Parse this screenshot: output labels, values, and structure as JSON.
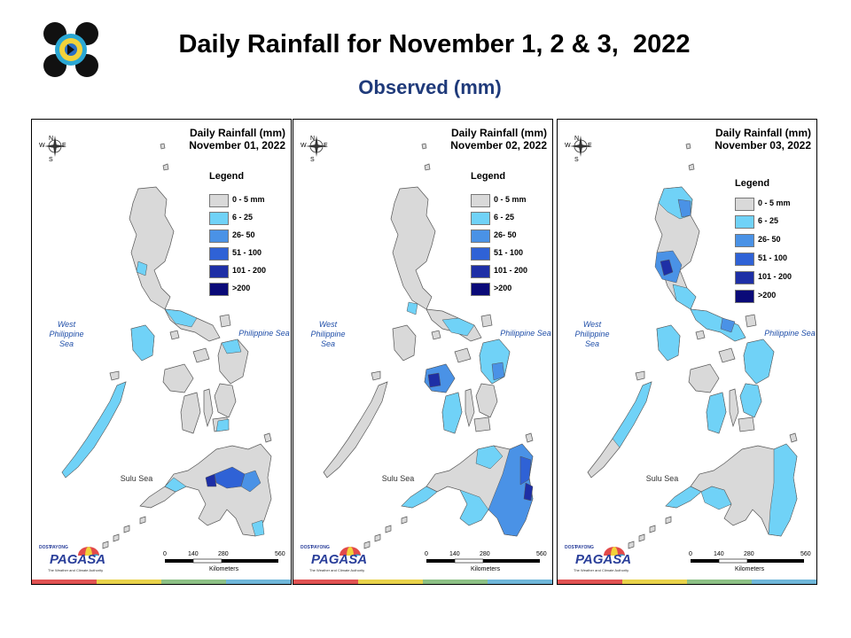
{
  "header": {
    "title": "Daily Rainfall for November 1, 2 & 3,  2022",
    "subtitle": "Observed (mm)"
  },
  "legend": {
    "title": "Legend",
    "items": [
      {
        "label": "0 - 5 mm",
        "color": "#d9d9d9"
      },
      {
        "label": "6 - 25",
        "color": "#70d2f7"
      },
      {
        "label": "26- 50",
        "color": "#4a92e6"
      },
      {
        "label": "51 - 100",
        "color": "#2f62d6"
      },
      {
        "label": "101 - 200",
        "color": "#1e2fa6"
      },
      {
        "label": ">200",
        "color": "#0a0a78"
      }
    ],
    "items_panel3": [
      "0 - 5 mm",
      "6 - 25",
      "26- 50",
      "51 - 100",
      "101 - 200",
      ">200"
    ]
  },
  "panels": [
    {
      "title_line1": "Daily Rainfall (mm)",
      "title_line2": "November 01, 2022"
    },
    {
      "title_line1": "Daily Rainfall (mm)",
      "title_line2": "November 02, 2022"
    },
    {
      "title_line1": "Daily Rainfall (mm)",
      "title_line2": "November 03, 2022"
    }
  ],
  "map_labels": {
    "west_sea_1": "West",
    "west_sea_2": "Philippine Sea",
    "philippine_sea": "Philippine Sea",
    "sulu_sea": "Sulu Sea"
  },
  "compass": {
    "n": "N",
    "s": "S",
    "e": "E",
    "w": "W"
  },
  "scale_bar": {
    "ticks": [
      "0",
      "140",
      "280",
      "560"
    ],
    "unit": "Kilometers"
  },
  "branding": {
    "name": "PAGASA",
    "small": "DOST",
    "small2": "PAYONG",
    "tagline": "The Weather and Climate Authority"
  },
  "strip_colors": [
    "#e05252",
    "#e8d24a",
    "#8cc084",
    "#6fb6d9"
  ]
}
